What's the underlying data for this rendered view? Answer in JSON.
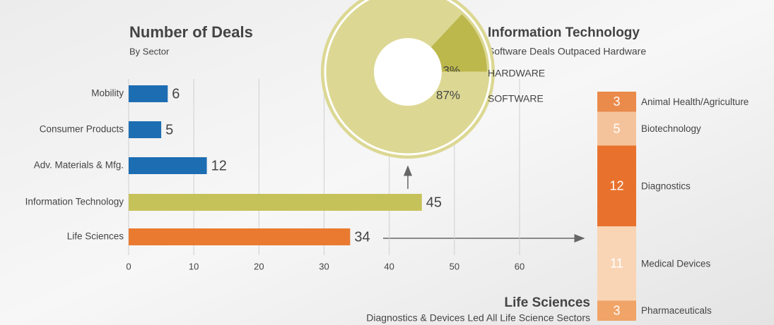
{
  "chart_data": [
    {
      "type": "bar",
      "title": "Number of Deals",
      "subtitle": "By Sector",
      "categories": [
        "Mobility",
        "Consumer Products",
        "Adv. Materials & Mfg.",
        "Information Technology",
        "Life Sciences"
      ],
      "values": [
        6,
        5,
        12,
        45,
        34
      ],
      "colors": [
        "#1d6db3",
        "#1d6db3",
        "#1d6db3",
        "#c6c25a",
        "#e97a30"
      ],
      "xlim": [
        0,
        60
      ],
      "xticks": [
        0,
        10,
        20,
        30,
        40,
        50,
        60
      ],
      "grid": true
    },
    {
      "type": "pie",
      "title": "Information Technology",
      "subtitle": "Software Deals Outpaced Hardware",
      "categories": [
        "HARDWARE",
        "SOFTWARE"
      ],
      "values": [
        13,
        87
      ],
      "value_labels": [
        "13%",
        "87%"
      ],
      "colors": [
        "#bdb84c",
        "#dcd894"
      ]
    },
    {
      "type": "stacked_column",
      "title": "Life Sciences",
      "subtitle": "Diagnostics & Devices Led All Life Science Sectors",
      "categories": [
        "Animal Health/Agriculture",
        "Biotechnology",
        "Diagnostics",
        "Medical Devices",
        "Pharmaceuticals"
      ],
      "values": [
        3,
        5,
        12,
        11,
        3
      ],
      "colors": [
        "#ea8a4b",
        "#f5c39b",
        "#e8722d",
        "#f9d5b5",
        "#f0a468"
      ]
    }
  ]
}
